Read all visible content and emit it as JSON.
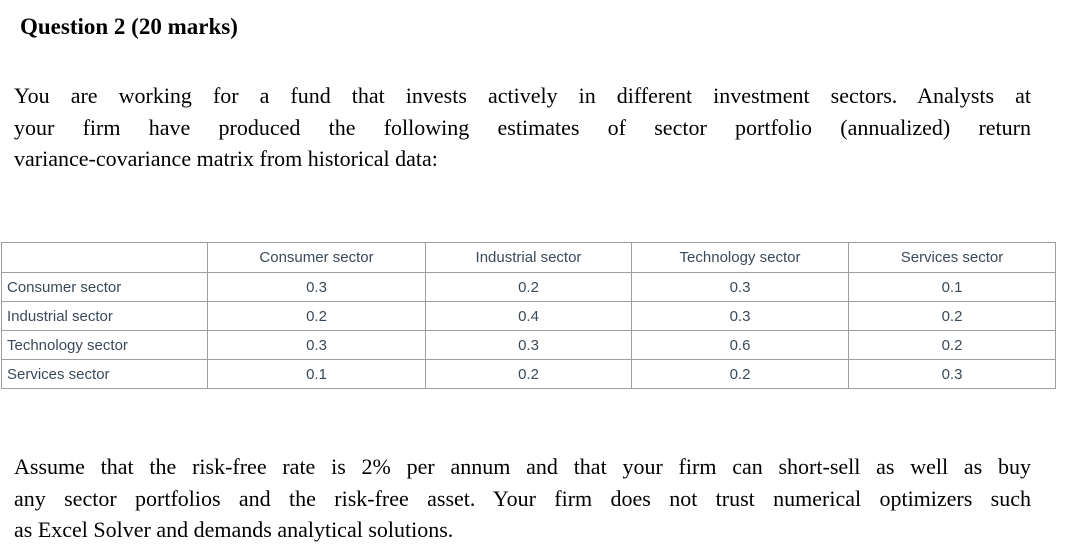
{
  "heading": "Question 2 (20 marks)",
  "paragraph1": {
    "lines": [
      {
        "text": "You are working for a fund that invests actively in different investment sectors. Analysts at",
        "justify": true
      },
      {
        "text": "your firm have produced the following estimates of sector portfolio (annualized) return",
        "justify": true
      },
      {
        "text": "variance-covariance matrix from historical data:",
        "justify": false
      }
    ]
  },
  "table": {
    "text_color": "#3b4a59",
    "outer_border_color": "#3a3a3a",
    "inner_border_color": "#9e9e9e",
    "column_headers": [
      "",
      "Consumer sector",
      "Industrial sector",
      "Technology sector",
      "Services sector"
    ],
    "rows": [
      {
        "label": "Consumer sector",
        "values": [
          "0.3",
          "0.2",
          "0.3",
          "0.1"
        ]
      },
      {
        "label": "Industrial sector",
        "values": [
          "0.2",
          "0.4",
          "0.3",
          "0.2"
        ]
      },
      {
        "label": "Technology sector",
        "values": [
          "0.3",
          "0.3",
          "0.6",
          "0.2"
        ]
      },
      {
        "label": "Services sector",
        "values": [
          "0.1",
          "0.2",
          "0.2",
          "0.3"
        ]
      }
    ]
  },
  "paragraph2": {
    "lines": [
      {
        "text": "Assume that the risk-free rate is 2% per annum and that your firm can short-sell as well as buy",
        "justify": true
      },
      {
        "text": "any sector portfolios and the risk-free asset. Your firm does not trust numerical optimizers such",
        "justify": true
      },
      {
        "text": "as Excel Solver and demands analytical solutions.",
        "justify": false
      }
    ]
  }
}
